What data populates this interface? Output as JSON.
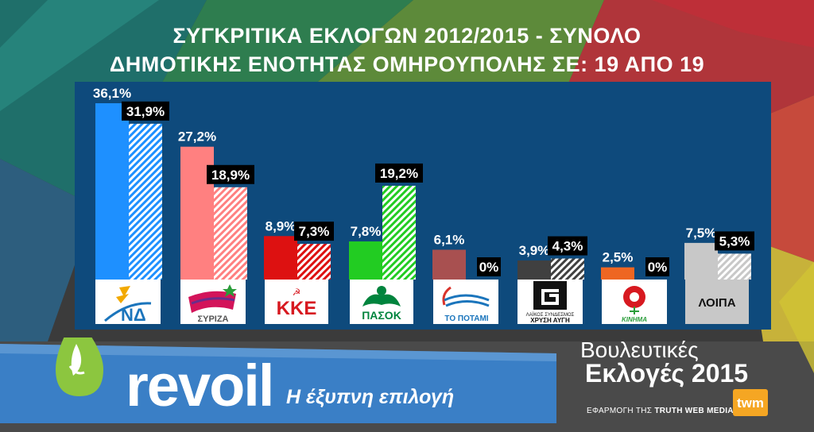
{
  "header": {
    "title_line1": "ΣΥΓΚΡΙΤΙΚΑ ΕΚΛΟΓΩΝ 2012/2015 - ΣΥΝΟΛΟ",
    "title_line2": "ΔΗΜΟΤΙΚΗΣ ΕΝΟΤΗΤΑΣ ΟΜΗΡΟΥΠΟΛΗΣ ΣΕ: 19 ΑΠΟ 19"
  },
  "chart_data": {
    "type": "bar",
    "title": "ΣΥΓΚΡΙΤΙΚΑ ΕΚΛΟΓΩΝ 2012/2015 - ΣΥΝΟΛΟ ΔΗΜΟΤΙΚΗΣ ΕΝΟΤΗΤΑΣ ΟΜΗΡΟΥΠΟΛΗΣ ΣΕ: 19 ΑΠΟ 19",
    "categories": [
      "ΝΔ",
      "ΣΥΡΙΖΑ",
      "ΚΚΕ",
      "ΠΑΣΟΚ",
      "ΤΟ ΠΟΤΑΜΙ",
      "ΧΡΥΣΗ ΑΥΓΗ",
      "ΚΙΝΗΜΑ",
      "ΛΟΙΠΑ"
    ],
    "series": [
      {
        "values": [
          36.1,
          27.2,
          8.9,
          7.8,
          6.1,
          3.9,
          2.5,
          7.5
        ],
        "labels": [
          "36,1%",
          "27,2%",
          "8,9%",
          "7,8%",
          "6,1%",
          "3,9%",
          "2,5%",
          "7,5%"
        ],
        "style": "solid"
      },
      {
        "values": [
          31.9,
          18.9,
          7.3,
          19.2,
          0,
          4.3,
          0,
          5.3
        ],
        "labels": [
          "31,9%",
          "18,9%",
          "7,3%",
          "19,2%",
          "0%",
          "4,3%",
          "0%",
          "5,3%"
        ],
        "style": "hatched"
      }
    ],
    "colors": [
      "#1e90ff",
      "#ff8080",
      "#dd1111",
      "#22cc22",
      "#a85050",
      "#404040",
      "#ee6622",
      "#c8c8c8"
    ],
    "ylim": [
      0,
      36.1
    ],
    "grid": false,
    "legend": "none",
    "plot_background": "#0e4a7c"
  },
  "logos": {
    "nd": "ΝΔ",
    "syriza": "ΣΥΡΙΖΑ",
    "kke": "ΚΚΕ",
    "pasok": "ΠΑΣΟΚ",
    "potami": "ΤΟ ΠΟΤΑΜΙ",
    "xa_line1": "ΛΑΪΚΟΣ ΣΥΝΔΕΣΜΟΣ",
    "xa_line2": "ΧΡΥΣΗ ΑΥΓΗ",
    "kinima": "ΚΙΝΗΜΑ",
    "loipa": "ΛΟΙΠΑ"
  },
  "ad": {
    "brand": "revoil",
    "slogan": "Η έξυπνη επιλογή",
    "brand_color": "#3a7fc6"
  },
  "branding": {
    "line1": "Βουλευτικές",
    "line2": "Εκλογές 2015",
    "app_prefix": "ΕΦΑΡΜΟΓΗ ΤΗΣ",
    "app_name": "TRUTH WEB MEDIA",
    "logo_text": "twm"
  }
}
